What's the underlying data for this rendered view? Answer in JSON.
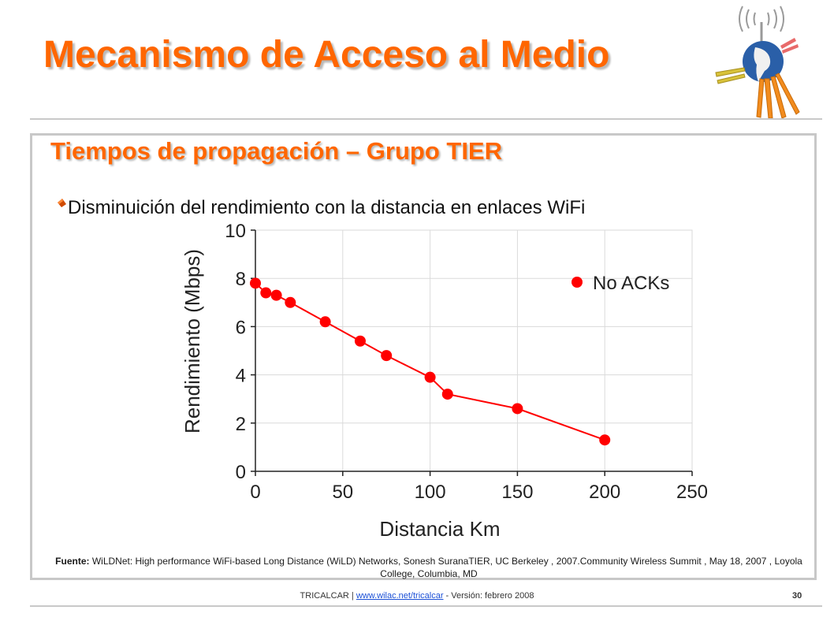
{
  "slide": {
    "title": "Mecanismo de Acceso al Medio",
    "subtitle": "Tiempos de propagación – Grupo TIER",
    "bullet": "Disminuición del rendimiento con la distancia en enlaces WiFi"
  },
  "source": {
    "label": "Fuente:",
    "text": " WiLDNet: High performance WiFi-based Long Distance (WiLD) Networks, Sonesh SuranaTIER, UC Berkeley , 2007.Community Wireless Summit , May 18, 2007 , Loyola College, Columbia, MD"
  },
  "footer": {
    "org": "TRICALCAR  | ",
    "link": "www.wilac.net/tricalcar",
    "version": "  - Versión:  febrero 2008",
    "page": "30"
  },
  "colors": {
    "title": "#ff6600",
    "series": "#ff0000"
  },
  "chart_data": {
    "type": "scatter",
    "xlabel": "Distancia Km",
    "ylabel": "Rendimiento (Mbps)",
    "xlim": [
      0,
      250
    ],
    "ylim": [
      0,
      10
    ],
    "xticks": [
      0,
      50,
      100,
      150,
      200,
      250
    ],
    "yticks": [
      0,
      2,
      4,
      6,
      8,
      10
    ],
    "grid": true,
    "legend_position": "top-right",
    "series": [
      {
        "name": "No ACKs",
        "color": "#ff0000",
        "points": [
          {
            "x": 0,
            "y": 7.8
          },
          {
            "x": 6,
            "y": 7.4
          },
          {
            "x": 12,
            "y": 7.3
          },
          {
            "x": 20,
            "y": 7.0
          },
          {
            "x": 40,
            "y": 6.2
          },
          {
            "x": 60,
            "y": 5.4
          },
          {
            "x": 75,
            "y": 4.8
          },
          {
            "x": 100,
            "y": 3.9
          },
          {
            "x": 110,
            "y": 3.2
          },
          {
            "x": 150,
            "y": 2.6
          },
          {
            "x": 200,
            "y": 1.3
          }
        ]
      }
    ]
  }
}
